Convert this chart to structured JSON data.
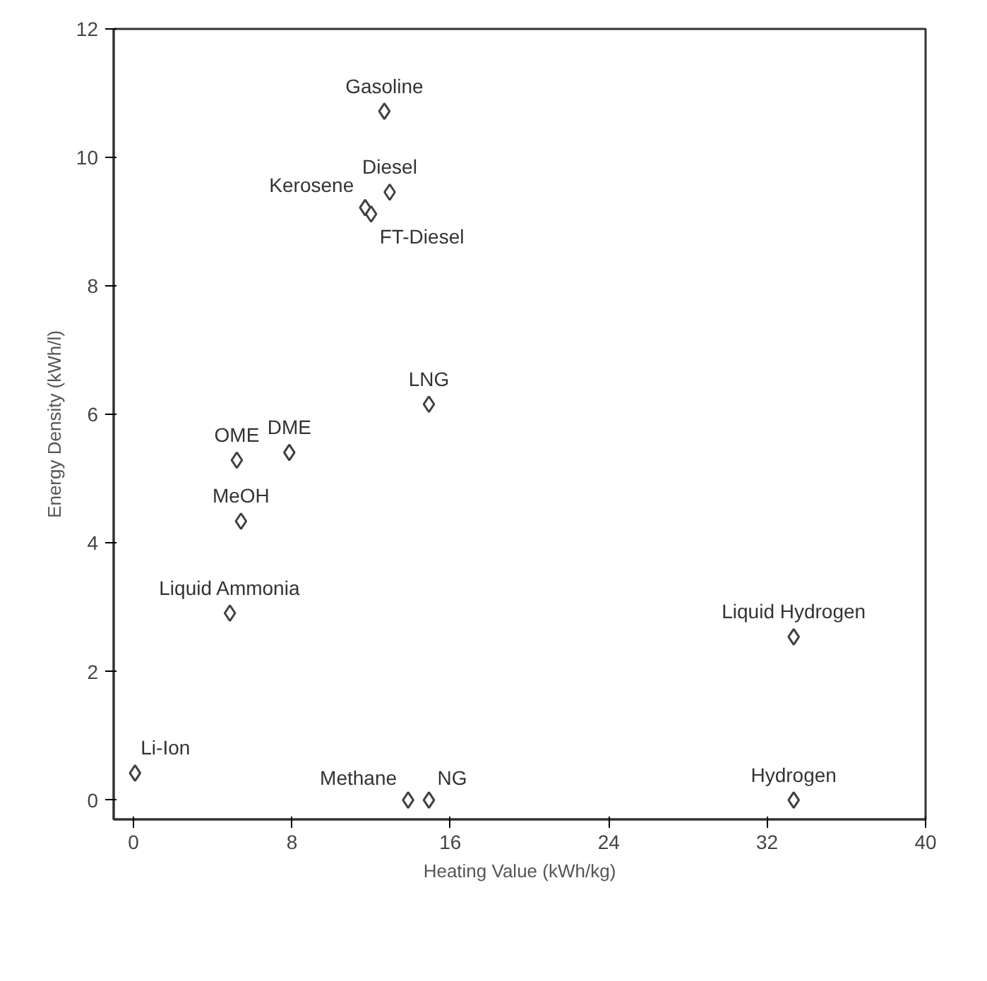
{
  "chart_data": {
    "type": "scatter",
    "xlabel": "Heating Value (kWh/kg)",
    "ylabel": "Energy Density (kWh/l)",
    "xlim": [
      -1,
      40
    ],
    "ylim": [
      -0.3,
      12
    ],
    "xticks": [
      0,
      8,
      16,
      24,
      32,
      40
    ],
    "yticks": [
      0,
      2,
      4,
      6,
      8,
      10,
      12
    ],
    "grid": false,
    "marker": "diamond",
    "series": [
      {
        "color": "#404040",
        "x": [
          12.67,
          12.94,
          11.7,
          12.0,
          14.92,
          5.22,
          7.87,
          5.43,
          4.87,
          0.08,
          13.87,
          14.92,
          33.34,
          33.34
        ],
        "values": [
          10.72,
          9.46,
          9.22,
          9.12,
          6.16,
          5.29,
          5.41,
          4.34,
          2.91,
          0.42,
          0,
          0,
          2.54,
          0
        ]
      }
    ],
    "annotations": [
      {
        "text": "Gasoline",
        "x": 12.67,
        "y": 10.72
      },
      {
        "text": "Diesel",
        "x": 12.94,
        "y": 9.46
      },
      {
        "text": "Kerosene",
        "x": 11.7,
        "y": 9.22
      },
      {
        "text": "FT-Diesel",
        "x": 12.0,
        "y": 9.12
      },
      {
        "text": "LNG",
        "x": 14.92,
        "y": 6.16
      },
      {
        "text": "OME",
        "x": 5.22,
        "y": 5.29
      },
      {
        "text": "DME",
        "x": 7.87,
        "y": 5.41
      },
      {
        "text": "MeOH",
        "x": 5.43,
        "y": 4.34
      },
      {
        "text": "Liquid Ammonia",
        "x": 4.87,
        "y": 2.91
      },
      {
        "text": "Li-Ion",
        "x": 0.08,
        "y": 0.42
      },
      {
        "text": "Methane",
        "x": 13.87,
        "y": 0
      },
      {
        "text": "NG",
        "x": 14.92,
        "y": 0
      },
      {
        "text": "Liquid Hydrogen",
        "x": 33.34,
        "y": 2.54
      },
      {
        "text": "Hydrogen",
        "x": 33.34,
        "y": 0
      }
    ]
  }
}
